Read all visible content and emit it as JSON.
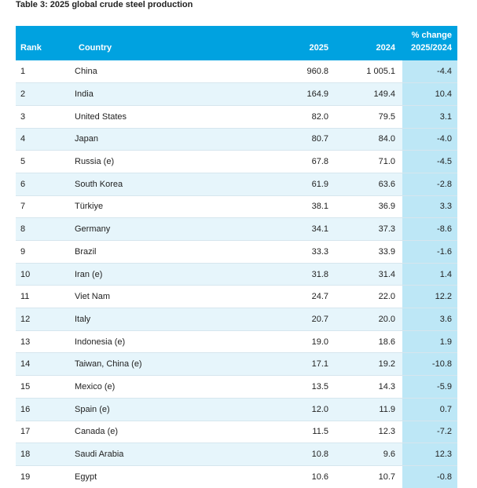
{
  "title": "Table 3: 2025 global crude steel production",
  "headers": {
    "rank": "Rank",
    "country": "Country",
    "y2025": "2025",
    "y2024": "2024",
    "change_line1": "% change",
    "change_line2": "2025/2024"
  },
  "colors": {
    "header_bg": "#00a2e0",
    "row_alt_bg": "#e6f5fb",
    "change_col_bg": "#bde7f6"
  },
  "rows": [
    {
      "rank": "1",
      "country": "China",
      "y2025": "960.8",
      "y2024": "1 005.1",
      "change": "-4.4"
    },
    {
      "rank": "2",
      "country": "India",
      "y2025": "164.9",
      "y2024": "149.4",
      "change": "10.4"
    },
    {
      "rank": "3",
      "country": "United States",
      "y2025": "82.0",
      "y2024": "79.5",
      "change": "3.1"
    },
    {
      "rank": "4",
      "country": "Japan",
      "y2025": "80.7",
      "y2024": "84.0",
      "change": "-4.0"
    },
    {
      "rank": "5",
      "country": "Russia (e)",
      "y2025": "67.8",
      "y2024": "71.0",
      "change": "-4.5"
    },
    {
      "rank": "6",
      "country": "South Korea",
      "y2025": "61.9",
      "y2024": "63.6",
      "change": "-2.8"
    },
    {
      "rank": "7",
      "country": "Türkiye",
      "y2025": "38.1",
      "y2024": "36.9",
      "change": "3.3"
    },
    {
      "rank": "8",
      "country": "Germany",
      "y2025": "34.1",
      "y2024": "37.3",
      "change": "-8.6"
    },
    {
      "rank": "9",
      "country": "Brazil",
      "y2025": "33.3",
      "y2024": "33.9",
      "change": "-1.6"
    },
    {
      "rank": "10",
      "country": "Iran (e)",
      "y2025": "31.8",
      "y2024": "31.4",
      "change": "1.4"
    },
    {
      "rank": "11",
      "country": "Viet Nam",
      "y2025": "24.7",
      "y2024": "22.0",
      "change": "12.2"
    },
    {
      "rank": "12",
      "country": "Italy",
      "y2025": "20.7",
      "y2024": "20.0",
      "change": "3.6"
    },
    {
      "rank": "13",
      "country": "Indonesia (e)",
      "y2025": "19.0",
      "y2024": "18.6",
      "change": "1.9"
    },
    {
      "rank": "14",
      "country": "Taiwan, China (e)",
      "y2025": "17.1",
      "y2024": "19.2",
      "change": "-10.8"
    },
    {
      "rank": "15",
      "country": "Mexico (e)",
      "y2025": "13.5",
      "y2024": "14.3",
      "change": "-5.9"
    },
    {
      "rank": "16",
      "country": "Spain (e)",
      "y2025": "12.0",
      "y2024": "11.9",
      "change": "0.7"
    },
    {
      "rank": "17",
      "country": "Canada (e)",
      "y2025": "11.5",
      "y2024": "12.3",
      "change": "-7.2"
    },
    {
      "rank": "18",
      "country": "Saudi Arabia",
      "y2025": "10.8",
      "y2024": "9.6",
      "change": "12.3"
    },
    {
      "rank": "19",
      "country": "Egypt",
      "y2025": "10.6",
      "y2024": "10.7",
      "change": "-0.8"
    }
  ]
}
